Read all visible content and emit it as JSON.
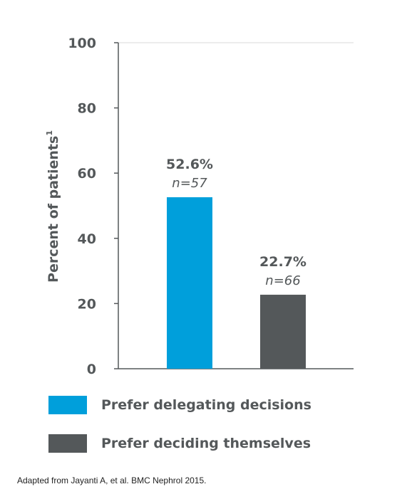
{
  "chart_data": {
    "type": "bar",
    "categories": [
      "Prefer delegating decisions",
      "Prefer deciding themselves"
    ],
    "values": [
      52.6,
      22.7
    ],
    "bar_colors": [
      "#009fdb",
      "#54585a"
    ],
    "value_labels": [
      "52.6%",
      "22.7%"
    ],
    "n_labels": [
      "n=57",
      "n=66"
    ],
    "ylabel": "Percent of patients",
    "ylabel_superscript": "1",
    "ylim": [
      0,
      100
    ],
    "yticks": [
      0,
      20,
      40,
      60,
      80,
      100
    ],
    "grid": false,
    "legend": "bottom"
  },
  "legend": {
    "items": [
      {
        "label": "Prefer delegating decisions",
        "color": "#009fdb"
      },
      {
        "label": "Prefer deciding themselves",
        "color": "#54585a"
      }
    ]
  },
  "source": "Adapted from Jayanti A, et al. BMC Nephrol 2015."
}
